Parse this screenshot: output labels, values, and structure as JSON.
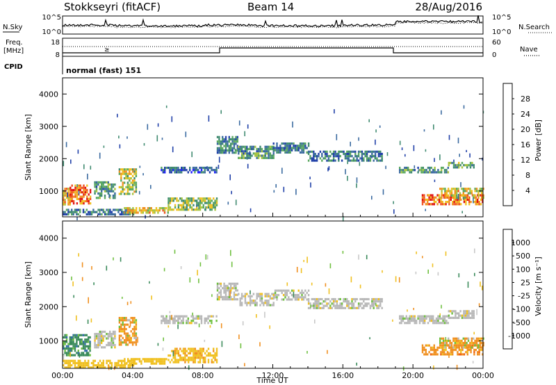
{
  "header": {
    "station": "Stokkseyri (fitACF)",
    "beam": "Beam 14",
    "date": "28/Aug/2016"
  },
  "strip": {
    "nsky_label": "N.Sky",
    "nsearch_label": "N.Search",
    "noise_ticks": [
      "10^5",
      "10^0"
    ],
    "freq_label_1": "Freq.",
    "freq_label_2": "[MHz]",
    "freq_ticks": [
      "18",
      "8"
    ],
    "nave_label": "Nave",
    "nave_ticks": [
      "60",
      "0"
    ],
    "cpid_label": "CPID",
    "cpid_text": "normal (fast) 151",
    "freq_marker": "≥"
  },
  "colors": {
    "power_scale": [
      "#1a1aff",
      "#2040a8",
      "#3a6aa0",
      "#3f8a70",
      "#5aa860",
      "#a8c440",
      "#f0c020",
      "#f09020",
      "#f05020",
      "#e01010"
    ],
    "velocity_scale": [
      "#1a3ab0",
      "#2f6aa8",
      "#3a8a5a",
      "#70c040",
      "#c8c8c8",
      "#c8c8c8",
      "#f0c020",
      "#f09020",
      "#f06010",
      "#e01010"
    ],
    "ground_scatter": "#b8b8b8"
  },
  "chart_data": [
    {
      "type": "heatmap",
      "name": "power-panel",
      "xlabel": "",
      "ylabel": "Slant Range [km]",
      "xlim": [
        0,
        24
      ],
      "ylim": [
        200,
        4500
      ],
      "yticks": [
        "1000",
        "2000",
        "3000",
        "4000"
      ],
      "colorbar": {
        "label": "Power [dB]",
        "range": [
          0,
          32
        ],
        "ticks": [
          "4",
          "8",
          "12",
          "16",
          "20",
          "24",
          "28"
        ]
      },
      "regions": [
        {
          "t": [
            0.0,
            0.4
          ],
          "r": [
            600,
            1100
          ],
          "v": 22
        },
        {
          "t": [
            0.4,
            1.6
          ],
          "r": [
            600,
            1200
          ],
          "v": 26
        },
        {
          "t": [
            0.0,
            4.0
          ],
          "r": [
            250,
            450
          ],
          "v": 10
        },
        {
          "t": [
            1.8,
            3.0
          ],
          "r": [
            800,
            1300
          ],
          "v": 12
        },
        {
          "t": [
            3.2,
            4.2
          ],
          "r": [
            900,
            1700
          ],
          "v": 18
        },
        {
          "t": [
            3.5,
            6.0
          ],
          "r": [
            350,
            500
          ],
          "v": 20
        },
        {
          "t": [
            5.6,
            8.8
          ],
          "r": [
            1550,
            1750
          ],
          "v": 8
        },
        {
          "t": [
            6.0,
            8.8
          ],
          "r": [
            400,
            800
          ],
          "v": 16
        },
        {
          "t": [
            8.8,
            10.0
          ],
          "r": [
            2200,
            2700
          ],
          "v": 10
        },
        {
          "t": [
            10.0,
            12.0
          ],
          "r": [
            2050,
            2400
          ],
          "v": 12
        },
        {
          "t": [
            12.0,
            14.0
          ],
          "r": [
            2200,
            2500
          ],
          "v": 10
        },
        {
          "t": [
            14.0,
            18.2
          ],
          "r": [
            1950,
            2250
          ],
          "v": 10
        },
        {
          "t": [
            19.2,
            22.0
          ],
          "r": [
            1550,
            1750
          ],
          "v": 12
        },
        {
          "t": [
            22.0,
            23.5
          ],
          "r": [
            1700,
            1900
          ],
          "v": 14
        },
        {
          "t": [
            20.5,
            24.0
          ],
          "r": [
            600,
            900
          ],
          "v": 26
        },
        {
          "t": [
            21.5,
            24.0
          ],
          "r": [
            800,
            1100
          ],
          "v": 20
        }
      ]
    },
    {
      "type": "heatmap",
      "name": "velocity-panel",
      "xlabel": "Time UT",
      "ylabel": "Slant Range [km]",
      "xlim": [
        0,
        24
      ],
      "ylim": [
        200,
        4500
      ],
      "xticks": [
        "00:00",
        "04:00",
        "08:00",
        "12:00",
        "16:00",
        "20:00",
        "00:00"
      ],
      "yticks": [
        "1000",
        "2000",
        "3000",
        "4000"
      ],
      "colorbar": {
        "label": "Velocity [m s⁻¹]",
        "ticks": [
          "1000",
          "500",
          "100",
          "25",
          "-25",
          "-100",
          "-500",
          "-1000"
        ]
      },
      "regions": [
        {
          "t": [
            0.0,
            1.6
          ],
          "r": [
            600,
            1200
          ],
          "v": 300
        },
        {
          "t": [
            0.0,
            4.0
          ],
          "r": [
            250,
            450
          ],
          "v": -60
        },
        {
          "t": [
            1.8,
            3.0
          ],
          "r": [
            800,
            1300
          ],
          "v": 0
        },
        {
          "t": [
            3.2,
            4.2
          ],
          "r": [
            900,
            1700
          ],
          "v": -200
        },
        {
          "t": [
            3.5,
            6.0
          ],
          "r": [
            350,
            500
          ],
          "v": -60
        },
        {
          "t": [
            5.6,
            8.8
          ],
          "r": [
            1550,
            1750
          ],
          "v": 0
        },
        {
          "t": [
            6.0,
            8.8
          ],
          "r": [
            400,
            800
          ],
          "v": -80
        },
        {
          "t": [
            8.8,
            10.0
          ],
          "r": [
            2200,
            2700
          ],
          "v": 0
        },
        {
          "t": [
            10.0,
            12.0
          ],
          "r": [
            2050,
            2400
          ],
          "v": 0
        },
        {
          "t": [
            12.0,
            14.0
          ],
          "r": [
            2200,
            2500
          ],
          "v": 0
        },
        {
          "t": [
            14.0,
            18.2
          ],
          "r": [
            1950,
            2250
          ],
          "v": 0
        },
        {
          "t": [
            19.2,
            22.0
          ],
          "r": [
            1550,
            1750
          ],
          "v": 0
        },
        {
          "t": [
            22.0,
            23.5
          ],
          "r": [
            1700,
            1900
          ],
          "v": 0
        },
        {
          "t": [
            20.5,
            24.0
          ],
          "r": [
            600,
            900
          ],
          "v": -300
        },
        {
          "t": [
            21.5,
            24.0
          ],
          "r": [
            800,
            1100
          ],
          "v": -150
        }
      ]
    }
  ]
}
